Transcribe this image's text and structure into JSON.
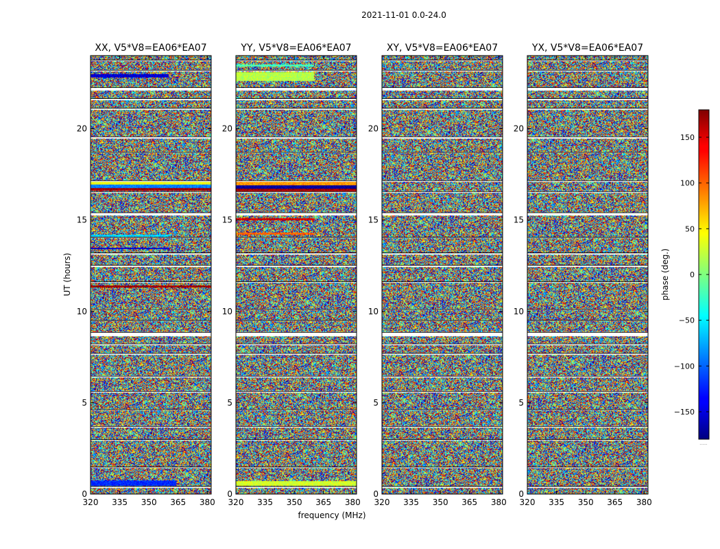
{
  "figure": {
    "suptitle": "2021-11-01 0.0-24.0",
    "xlabel": "frequency (MHz)",
    "ylabel": "UT (hours)",
    "colorbar_label": "phase (deg.)",
    "colorbar_footer": "......"
  },
  "chart_data": {
    "type": "heatmap",
    "colormap": "jet",
    "value_range": [
      -180,
      180
    ],
    "xlim": [
      320,
      382
    ],
    "ylim": [
      0,
      24
    ],
    "xticks": [
      320,
      335,
      350,
      365,
      380
    ],
    "yticks": [
      0,
      5,
      10,
      15,
      20
    ],
    "colorbar_ticks": [
      150,
      100,
      50,
      0,
      -50,
      -100,
      -150
    ],
    "panels": [
      {
        "title": "XX, V5*V8=EA06*EA07",
        "polarization": "XX"
      },
      {
        "title": "YY, V5*V8=EA06*EA07",
        "polarization": "YY"
      },
      {
        "title": "XY, V5*V8=EA06*EA07",
        "polarization": "XY"
      },
      {
        "title": "YX, V5*V8=EA06*EA07",
        "polarization": "YX"
      }
    ],
    "gaps_ut": [
      [
        0.35,
        0.42
      ],
      [
        1.42,
        1.48
      ],
      [
        2.92,
        2.98
      ],
      [
        3.65,
        3.7
      ],
      [
        4.58,
        4.62
      ],
      [
        5.55,
        5.62
      ],
      [
        6.4,
        6.45
      ],
      [
        7.62,
        7.7
      ],
      [
        8.15,
        8.22
      ],
      [
        8.65,
        8.85
      ],
      [
        9.45,
        9.5
      ],
      [
        10.05,
        10.1
      ],
      [
        11.55,
        11.62
      ],
      [
        12.45,
        12.52
      ],
      [
        13.1,
        13.2
      ],
      [
        14.0,
        14.05
      ],
      [
        15.25,
        15.4
      ],
      [
        16.5,
        16.55
      ],
      [
        17.1,
        17.15
      ],
      [
        18.65,
        18.7
      ],
      [
        19.45,
        19.55
      ],
      [
        21.05,
        21.12
      ],
      [
        21.55,
        21.65
      ],
      [
        22.1,
        22.25
      ],
      [
        23.15,
        23.2
      ],
      [
        23.7,
        23.75
      ]
    ],
    "coherent_bands": [
      {
        "panel": "XX",
        "ut": [
          0.45,
          0.75
        ],
        "phase": -120,
        "freq_to": 364
      },
      {
        "panel": "XX",
        "ut": [
          0.55,
          0.72
        ],
        "phase": 160,
        "freq_to": 345
      },
      {
        "panel": "XX",
        "ut": [
          16.6,
          16.75
        ],
        "phase": 170,
        "freq_to": 382
      },
      {
        "panel": "XX",
        "ut": [
          16.75,
          16.95
        ],
        "phase": -90,
        "freq_to": 382
      },
      {
        "panel": "XX",
        "ut": [
          16.95,
          17.1
        ],
        "phase": 40,
        "freq_to": 382
      },
      {
        "panel": "XX",
        "ut": [
          13.4,
          13.5
        ],
        "phase": -150,
        "freq_to": 360
      },
      {
        "panel": "XX",
        "ut": [
          11.3,
          11.4
        ],
        "phase": 170,
        "freq_to": 382
      },
      {
        "panel": "XX",
        "ut": [
          14.1,
          14.2
        ],
        "phase": -60,
        "freq_to": 360
      },
      {
        "panel": "XX",
        "ut": [
          22.8,
          23.0
        ],
        "phase": -150,
        "freq_to": 360
      },
      {
        "panel": "YY",
        "ut": [
          0.45,
          0.7
        ],
        "phase": 30,
        "freq_to": 382
      },
      {
        "panel": "YY",
        "ut": [
          16.55,
          16.7
        ],
        "phase": 170,
        "freq_to": 382
      },
      {
        "panel": "YY",
        "ut": [
          16.7,
          16.9
        ],
        "phase": -170,
        "freq_to": 382
      },
      {
        "panel": "YY",
        "ut": [
          16.9,
          17.1
        ],
        "phase": 80,
        "freq_to": 382
      },
      {
        "panel": "YY",
        "ut": [
          15.0,
          15.1
        ],
        "phase": 150,
        "freq_to": 360
      },
      {
        "panel": "YY",
        "ut": [
          14.2,
          14.3
        ],
        "phase": 100,
        "freq_to": 360
      },
      {
        "panel": "YY",
        "ut": [
          22.6,
          23.1
        ],
        "phase": 20,
        "freq_to": 360
      },
      {
        "panel": "YY",
        "ut": [
          23.4,
          23.5
        ],
        "phase": -20,
        "freq_to": 360
      }
    ]
  }
}
